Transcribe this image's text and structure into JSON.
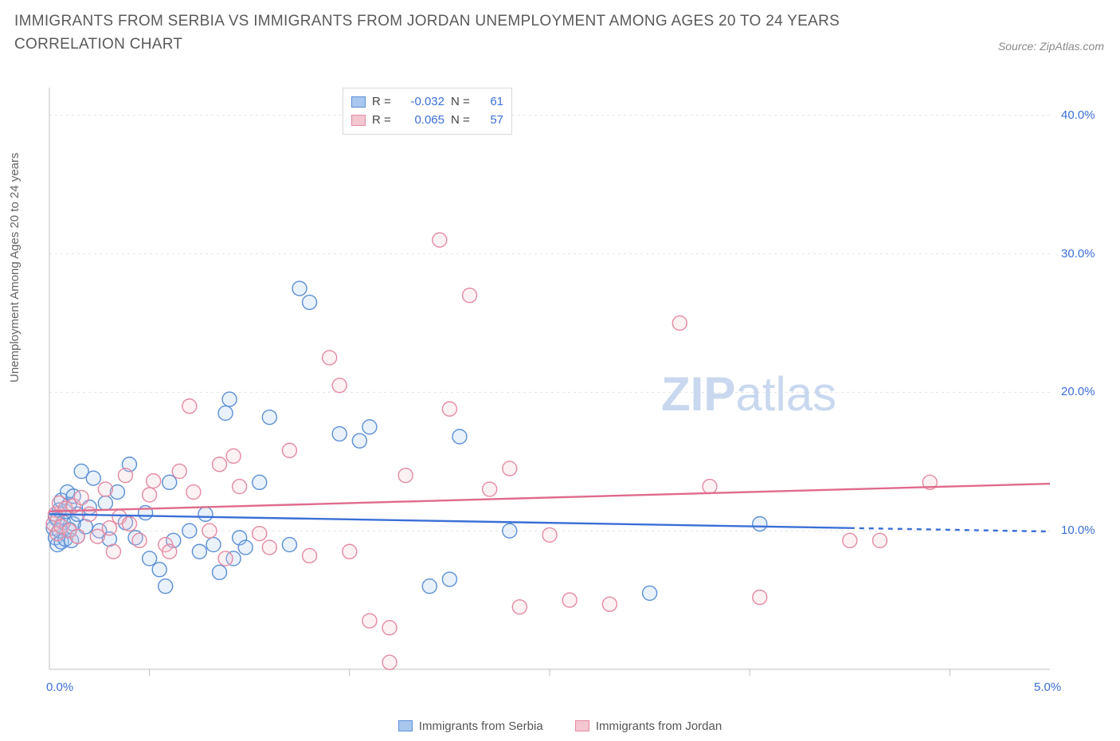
{
  "title": "IMMIGRANTS FROM SERBIA VS IMMIGRANTS FROM JORDAN UNEMPLOYMENT AMONG AGES 20 TO 24 YEARS CORRELATION CHART",
  "source_label": "Source: ZipAtlas.com",
  "y_axis_label": "Unemployment Among Ages 20 to 24 years",
  "watermark": {
    "text_bold": "ZIP",
    "text_rest": "atlas",
    "color": "#c9d8ee",
    "fontsize": 60
  },
  "chart": {
    "type": "scatter",
    "background_color": "#ffffff",
    "grid_color": "#e2e2e2",
    "axis_color": "#bfbfbf",
    "tick_color": "#bfbfbf",
    "label_color": "#666666",
    "value_color": "#3b6fd6",
    "xlim": [
      0.0,
      5.0
    ],
    "ylim": [
      0.0,
      42.0
    ],
    "x_end_labels": [
      {
        "value": 0.0,
        "text": "0.0%"
      },
      {
        "value": 5.0,
        "text": "5.0%"
      }
    ],
    "x_ticks": [
      0.5,
      1.5,
      2.5,
      3.5,
      4.5
    ],
    "y_ticks": [
      {
        "value": 10.0,
        "label": "10.0%"
      },
      {
        "value": 20.0,
        "label": "20.0%"
      },
      {
        "value": 30.0,
        "label": "30.0%"
      },
      {
        "value": 40.0,
        "label": "40.0%"
      }
    ],
    "marker_radius": 9,
    "marker_stroke_width": 1.4,
    "marker_fill_opacity": 0.25,
    "trend_line_width": 2.4,
    "series": [
      {
        "name": "Immigrants from Serbia",
        "color_fill": "#a9c7ef",
        "color_stroke": "#5b8fd6",
        "line_color": "#3b6fd6",
        "R": "-0.032",
        "N": "61",
        "trend": {
          "x0": 0.0,
          "y0": 11.2,
          "x1": 4.0,
          "y1": 10.2,
          "dash_after_x": 4.0,
          "x2": 5.0,
          "y2": 9.95
        },
        "points": [
          [
            0.02,
            10.2
          ],
          [
            0.03,
            11.0
          ],
          [
            0.03,
            9.5
          ],
          [
            0.04,
            10.8
          ],
          [
            0.04,
            9.0
          ],
          [
            0.05,
            11.5
          ],
          [
            0.05,
            10.0
          ],
          [
            0.06,
            12.2
          ],
          [
            0.06,
            9.2
          ],
          [
            0.07,
            10.6
          ],
          [
            0.08,
            11.4
          ],
          [
            0.08,
            9.4
          ],
          [
            0.09,
            12.8
          ],
          [
            0.1,
            10.1
          ],
          [
            0.1,
            11.9
          ],
          [
            0.11,
            9.3
          ],
          [
            0.12,
            10.5
          ],
          [
            0.12,
            12.5
          ],
          [
            0.14,
            11.2
          ],
          [
            0.14,
            9.6
          ],
          [
            0.16,
            14.3
          ],
          [
            0.18,
            10.3
          ],
          [
            0.2,
            11.7
          ],
          [
            0.22,
            13.8
          ],
          [
            0.25,
            10.0
          ],
          [
            0.28,
            12.0
          ],
          [
            0.3,
            9.4
          ],
          [
            0.34,
            12.8
          ],
          [
            0.38,
            10.6
          ],
          [
            0.4,
            14.8
          ],
          [
            0.43,
            9.5
          ],
          [
            0.48,
            11.3
          ],
          [
            0.5,
            8.0
          ],
          [
            0.55,
            7.2
          ],
          [
            0.58,
            6.0
          ],
          [
            0.6,
            13.5
          ],
          [
            0.62,
            9.3
          ],
          [
            0.7,
            10.0
          ],
          [
            0.75,
            8.5
          ],
          [
            0.78,
            11.2
          ],
          [
            0.82,
            9.0
          ],
          [
            0.85,
            7.0
          ],
          [
            0.88,
            18.5
          ],
          [
            0.9,
            19.5
          ],
          [
            0.92,
            8.0
          ],
          [
            0.95,
            9.5
          ],
          [
            0.98,
            8.8
          ],
          [
            1.05,
            13.5
          ],
          [
            1.1,
            18.2
          ],
          [
            1.2,
            9.0
          ],
          [
            1.25,
            27.5
          ],
          [
            1.3,
            26.5
          ],
          [
            1.45,
            17.0
          ],
          [
            1.55,
            16.5
          ],
          [
            1.6,
            17.5
          ],
          [
            1.9,
            6.0
          ],
          [
            2.0,
            6.5
          ],
          [
            2.05,
            16.8
          ],
          [
            2.3,
            10.0
          ],
          [
            3.0,
            5.5
          ],
          [
            3.55,
            10.5
          ]
        ]
      },
      {
        "name": "Immigrants from Jordan",
        "color_fill": "#f3c6d1",
        "color_stroke": "#e48aa2",
        "line_color": "#e06a8c",
        "R": "0.065",
        "N": "57",
        "trend": {
          "x0": 0.0,
          "y0": 11.4,
          "x1": 5.0,
          "y1": 13.4
        },
        "points": [
          [
            0.02,
            10.5
          ],
          [
            0.03,
            11.2
          ],
          [
            0.04,
            9.8
          ],
          [
            0.05,
            12.0
          ],
          [
            0.06,
            10.3
          ],
          [
            0.08,
            11.6
          ],
          [
            0.1,
            10.0
          ],
          [
            0.12,
            11.8
          ],
          [
            0.14,
            9.6
          ],
          [
            0.16,
            12.4
          ],
          [
            0.2,
            11.2
          ],
          [
            0.24,
            9.6
          ],
          [
            0.28,
            13.0
          ],
          [
            0.3,
            10.2
          ],
          [
            0.32,
            8.5
          ],
          [
            0.35,
            11.0
          ],
          [
            0.38,
            14.0
          ],
          [
            0.4,
            10.5
          ],
          [
            0.45,
            9.3
          ],
          [
            0.5,
            12.6
          ],
          [
            0.52,
            13.6
          ],
          [
            0.58,
            9.0
          ],
          [
            0.6,
            8.5
          ],
          [
            0.65,
            14.3
          ],
          [
            0.7,
            19.0
          ],
          [
            0.72,
            12.8
          ],
          [
            0.8,
            10.0
          ],
          [
            0.85,
            14.8
          ],
          [
            0.88,
            8.0
          ],
          [
            0.92,
            15.4
          ],
          [
            0.95,
            13.2
          ],
          [
            1.05,
            9.8
          ],
          [
            1.1,
            8.8
          ],
          [
            1.2,
            15.8
          ],
          [
            1.3,
            8.2
          ],
          [
            1.4,
            22.5
          ],
          [
            1.45,
            20.5
          ],
          [
            1.5,
            8.5
          ],
          [
            1.6,
            3.5
          ],
          [
            1.7,
            3.0
          ],
          [
            1.7,
            0.5
          ],
          [
            1.78,
            14.0
          ],
          [
            1.95,
            31.0
          ],
          [
            2.0,
            18.8
          ],
          [
            2.1,
            27.0
          ],
          [
            2.2,
            13.0
          ],
          [
            2.3,
            14.5
          ],
          [
            2.35,
            4.5
          ],
          [
            2.5,
            9.7
          ],
          [
            2.6,
            5.0
          ],
          [
            2.8,
            4.7
          ],
          [
            3.15,
            25.0
          ],
          [
            3.3,
            13.2
          ],
          [
            3.55,
            5.2
          ],
          [
            4.0,
            9.3
          ],
          [
            4.15,
            9.3
          ],
          [
            4.4,
            13.5
          ]
        ]
      }
    ]
  },
  "bottom_legend": [
    {
      "label": "Immigrants from Serbia",
      "fill": "#a9c7ef",
      "stroke": "#5b8fd6"
    },
    {
      "label": "Immigrants from Jordan",
      "fill": "#f3c6d1",
      "stroke": "#e48aa2"
    }
  ]
}
